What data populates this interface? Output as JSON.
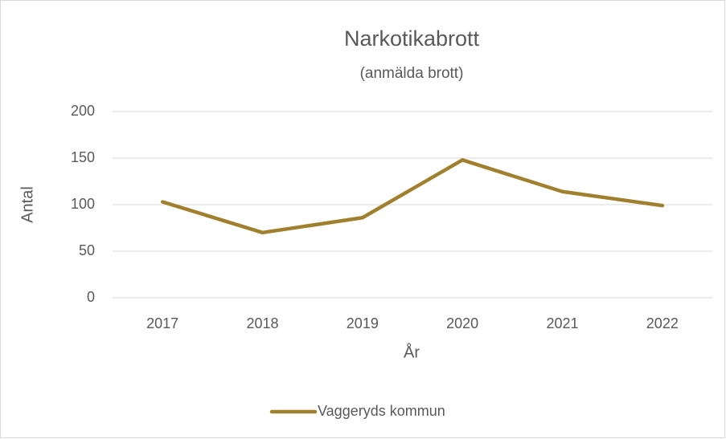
{
  "chart_data": {
    "type": "line",
    "title": "Narkotikabrott",
    "subtitle": "(anmälda brott)",
    "x_label": "År",
    "y_label": "Antal",
    "categories": [
      "2017",
      "2018",
      "2019",
      "2020",
      "2021",
      "2022"
    ],
    "series": [
      {
        "name": "Vaggeryds kommun",
        "color": "#a0802e",
        "values": [
          103,
          70,
          86,
          148,
          114,
          99
        ]
      }
    ],
    "ylim": [
      0,
      200
    ],
    "yticks": [
      0,
      50,
      100,
      150,
      200
    ],
    "grid": true,
    "legend": "bottom"
  }
}
